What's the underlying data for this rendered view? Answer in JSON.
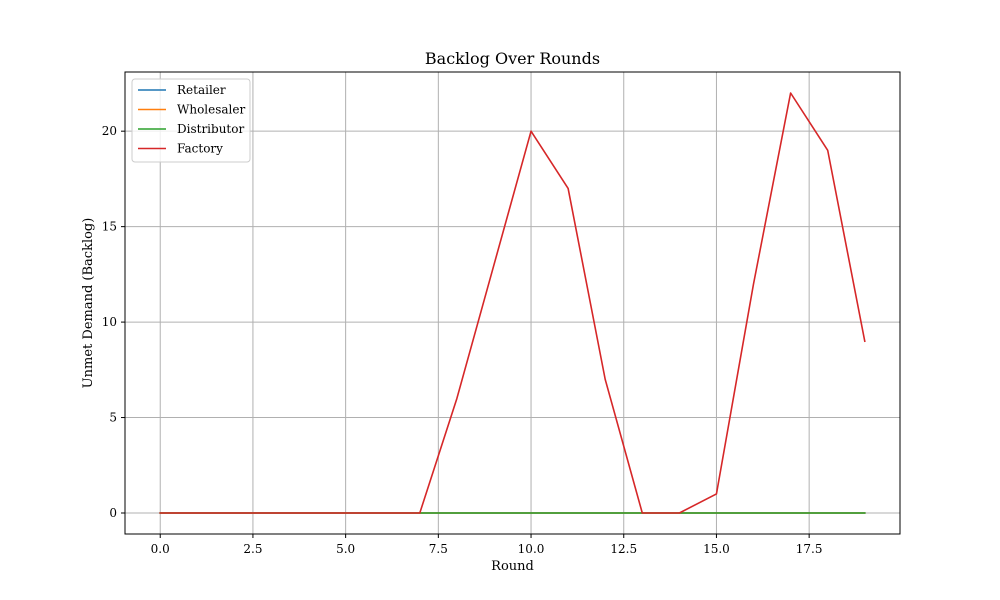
{
  "chart_data": {
    "type": "line",
    "title": "Backlog Over Rounds",
    "xlabel": "Round",
    "ylabel": "Unmet Demand (Backlog)",
    "xlim": [
      -0.95,
      19.95
    ],
    "ylim": [
      -1.1,
      23.1
    ],
    "xticks": [
      0.0,
      2.5,
      5.0,
      7.5,
      10.0,
      12.5,
      15.0,
      17.5
    ],
    "xtick_labels": [
      "0.0",
      "2.5",
      "5.0",
      "7.5",
      "10.0",
      "12.5",
      "15.0",
      "17.5"
    ],
    "yticks": [
      0,
      5,
      10,
      15,
      20
    ],
    "ytick_labels": [
      "0",
      "5",
      "10",
      "15",
      "20"
    ],
    "grid": true,
    "legend_position": "top-left",
    "x": [
      0,
      1,
      2,
      3,
      4,
      5,
      6,
      7,
      8,
      9,
      10,
      11,
      12,
      13,
      14,
      15,
      16,
      17,
      18,
      19
    ],
    "series": [
      {
        "name": "Retailer",
        "color": "#1f77b4",
        "values": [
          0,
          0,
          0,
          0,
          0,
          0,
          0,
          0,
          0,
          0,
          0,
          0,
          0,
          0,
          0,
          0,
          0,
          0,
          0,
          0
        ]
      },
      {
        "name": "Wholesaler",
        "color": "#ff7f0e",
        "values": [
          0,
          0,
          0,
          0,
          0,
          0,
          0,
          0,
          0,
          0,
          0,
          0,
          0,
          0,
          0,
          0,
          0,
          0,
          0,
          0
        ]
      },
      {
        "name": "Distributor",
        "color": "#2ca02c",
        "values": [
          0,
          0,
          0,
          0,
          0,
          0,
          0,
          0,
          0,
          0,
          0,
          0,
          0,
          0,
          0,
          0,
          0,
          0,
          0,
          0
        ]
      },
      {
        "name": "Factory",
        "color": "#d62728",
        "values": [
          0,
          0,
          0,
          0,
          0,
          0,
          0,
          0,
          6,
          13,
          20,
          17,
          7,
          0,
          0,
          1,
          12,
          22,
          19,
          9
        ]
      }
    ]
  }
}
